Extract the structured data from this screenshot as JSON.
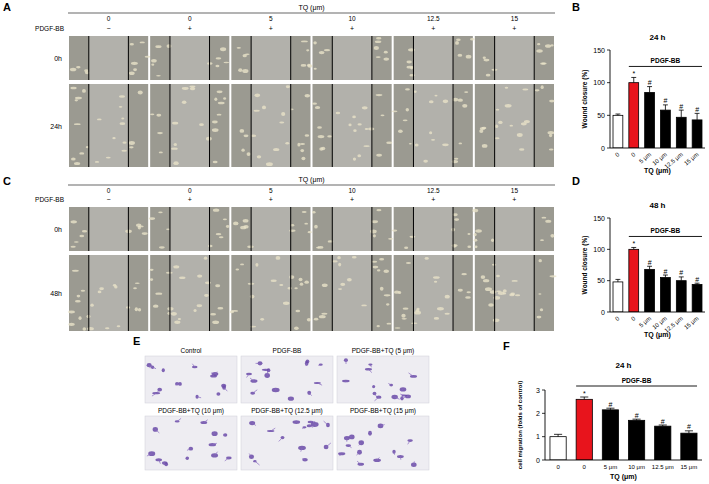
{
  "panels": [
    {
      "panel": "A",
      "header": "TQ (μm)",
      "tq": [
        0,
        0,
        5,
        10,
        12.5,
        15
      ],
      "pdgf_label": "PDGF-BB",
      "pdgf": [
        "−",
        "+",
        "+",
        "+",
        "+",
        "+"
      ],
      "rows": [
        "0h",
        "24h"
      ]
    },
    {
      "panel": "C",
      "header": "TQ (μm)",
      "tq": [
        0,
        0,
        5,
        10,
        12.5,
        15
      ],
      "pdgf_label": "PDGF-BB",
      "pdgf": [
        "−",
        "+",
        "+",
        "+",
        "+",
        "+"
      ],
      "rows": [
        "0h",
        "48h"
      ]
    },
    {
      "panel": "E",
      "captions": [
        "Control",
        "PDGF-BB",
        "PDGF-BB+TQ (5 μm)",
        "PDGF-BB+TQ (10 μm)",
        "PDGF-BB+TQ (12.5 μm)",
        "PDGF-BB+TQ (15 μm)"
      ]
    }
  ],
  "chart_data": [
    {
      "panel": "B",
      "type": "bar",
      "title": "24 h",
      "categories": [
        "0",
        "0",
        "5 μm",
        "10 μm",
        "12.5 μm",
        "15 μm"
      ],
      "x_label": "TQ (μm)",
      "y_label": "Wound closure (%)",
      "values": [
        50,
        100,
        85,
        58,
        47,
        43
      ],
      "errors": [
        2,
        8,
        9,
        8,
        11,
        10
      ],
      "significance": [
        null,
        "*",
        "#",
        "#",
        "#",
        "#"
      ],
      "group_label": "PDGF-BB",
      "colors": [
        "#ffffff",
        "#e8141c",
        "#000000",
        "#000000",
        "#000000",
        "#000000"
      ],
      "ylim": [
        0,
        150
      ],
      "yticks": [
        0,
        50,
        100,
        150
      ]
    },
    {
      "panel": "D",
      "type": "bar",
      "title": "48 h",
      "categories": [
        "0",
        "0",
        "5 μm",
        "10 μm",
        "12.5 μm",
        "15 μm"
      ],
      "x_label": "TQ (μm)",
      "y_label": "Wound closure (%)",
      "values": [
        48,
        100,
        68,
        55,
        50,
        44
      ],
      "errors": [
        4,
        3,
        5,
        4,
        6,
        2
      ],
      "significance": [
        null,
        "*",
        "#",
        "#",
        "#",
        "#"
      ],
      "group_label": "PDGF-BB",
      "colors": [
        "#ffffff",
        "#e8141c",
        "#000000",
        "#000000",
        "#000000",
        "#000000"
      ],
      "ylim": [
        0,
        150
      ],
      "yticks": [
        0,
        50,
        100,
        150
      ]
    },
    {
      "panel": "F",
      "type": "bar",
      "title": "24 h",
      "categories": [
        "0",
        "0",
        "5 μm",
        "10 μm",
        "12.5 μm",
        "15 μm"
      ],
      "x_label": "TQ (μm)",
      "y_label": "cell migration (folds of control)",
      "values": [
        1.0,
        2.6,
        2.15,
        1.7,
        1.45,
        1.15
      ],
      "errors": [
        0.1,
        0.1,
        0.07,
        0.05,
        0.05,
        0.1
      ],
      "significance": [
        null,
        "*",
        "#",
        "#",
        "#",
        "#"
      ],
      "group_label": "PDGF-BB",
      "colors": [
        "#ffffff",
        "#e8141c",
        "#000000",
        "#000000",
        "#000000",
        "#000000"
      ],
      "ylim": [
        0,
        3
      ],
      "yticks": [
        0,
        1,
        2,
        3
      ]
    }
  ]
}
